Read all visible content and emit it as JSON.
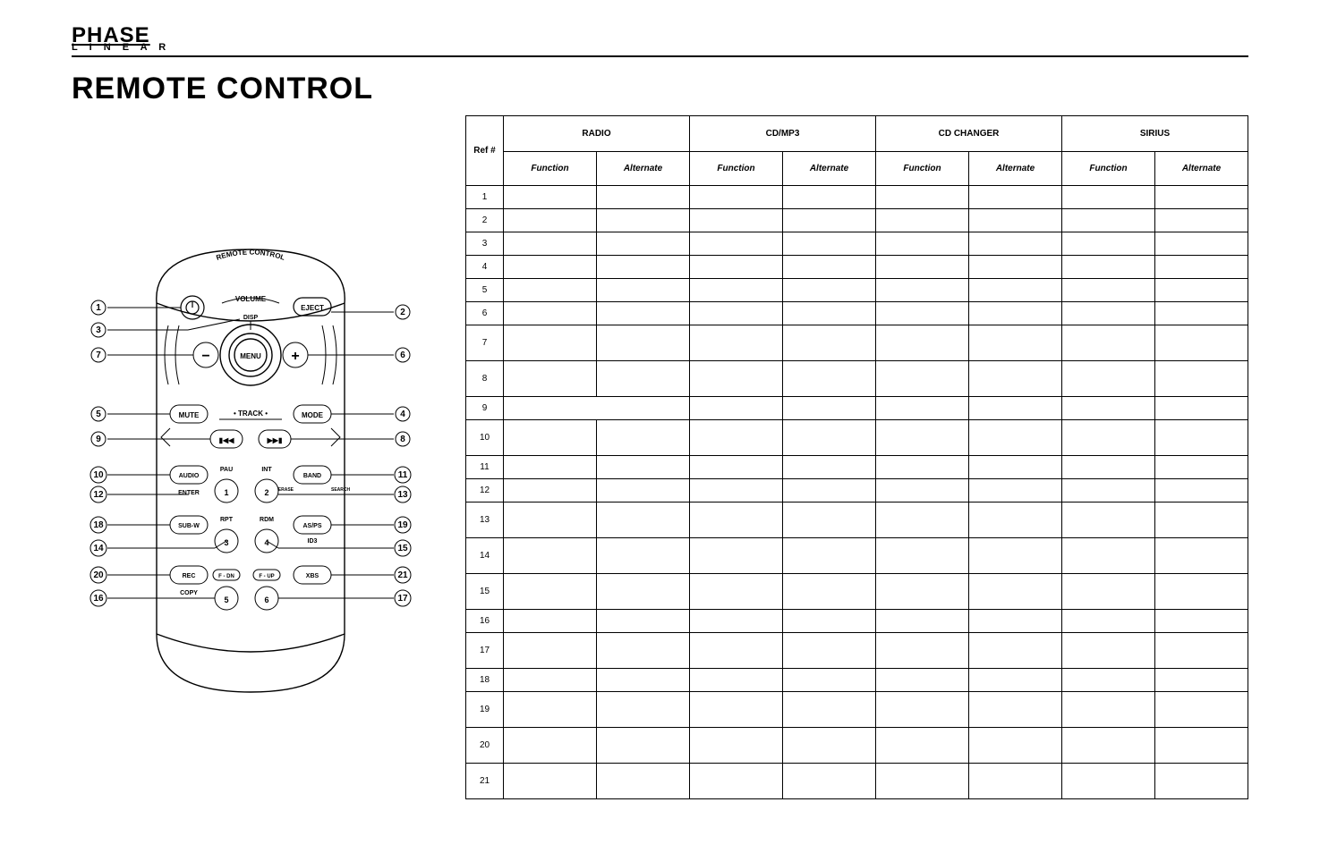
{
  "brand": {
    "top": "PHASE",
    "bottom": "L I N E A R"
  },
  "title": "REMOTE CONTROL",
  "remote": {
    "arc_text": "REMOTE CONTROL",
    "labels": {
      "volume": "VOLUME",
      "disp": "DISP",
      "menu": "MENU",
      "minus": "−",
      "plus": "+",
      "eject": "EJECT",
      "mute": "MUTE",
      "mode": "MODE",
      "track": "•  TRACK  •",
      "prev": "▮◀◀",
      "next": "▶▶▮",
      "audio": "AUDIO",
      "enter": "ENTER",
      "pau": "PAU",
      "int": "INT",
      "band": "BAND",
      "erase": "ERASE",
      "search": "SEARCH",
      "subw": "SUB-W",
      "rpt": "RPT",
      "rdm": "RDM",
      "asps": "AS/PS",
      "id3": "ID3",
      "rec": "REC",
      "copy": "COPY",
      "fdn": "F - DN",
      "fup": "F - UP",
      "xbs": "XBS",
      "n1": "1",
      "n2": "2",
      "n3": "3",
      "n4": "4",
      "n5": "5",
      "n6": "6"
    },
    "callouts": {
      "left": [
        "1",
        "3",
        "7",
        "5",
        "9",
        "10",
        "12",
        "18",
        "14",
        "20",
        "16"
      ],
      "right": [
        "2",
        "6",
        "4",
        "8",
        "11",
        "13",
        "19",
        "15",
        "21",
        "17"
      ]
    }
  },
  "table": {
    "head": {
      "ref": "Ref #",
      "groups": [
        "RADIO",
        "CD/MP3",
        "CD CHANGER",
        "SIRIUS"
      ],
      "sub": [
        "Function",
        "Alternate",
        "Function",
        "Alternate",
        "Function",
        "Alternate",
        "Function",
        "Alternate"
      ]
    },
    "rows": [
      {
        "n": "1",
        "c": [
          "",
          "",
          "",
          "",
          "",
          "",
          "",
          ""
        ]
      },
      {
        "n": "2",
        "c": [
          "",
          "",
          "",
          "",
          "",
          "",
          "",
          ""
        ]
      },
      {
        "n": "3",
        "c": [
          "",
          "",
          "",
          "",
          "",
          "",
          "",
          ""
        ]
      },
      {
        "n": "4",
        "c": [
          "",
          "",
          "",
          "",
          "",
          "",
          "",
          ""
        ]
      },
      {
        "n": "5",
        "c": [
          "",
          "",
          "",
          "",
          "",
          "",
          "",
          ""
        ]
      },
      {
        "n": "6",
        "c": [
          "",
          "",
          "",
          "",
          "",
          "",
          "",
          ""
        ]
      },
      {
        "n": "7",
        "c": [
          "",
          "",
          "",
          "",
          "",
          "",
          "",
          ""
        ],
        "tall": true
      },
      {
        "n": "8",
        "c": [
          "",
          "",
          "",
          "",
          "",
          "",
          "",
          ""
        ],
        "tall": true
      },
      {
        "n": "9",
        "c": [
          "",
          "",
          "",
          "",
          "",
          "",
          "",
          ""
        ],
        "span2": true
      },
      {
        "n": "10",
        "c": [
          "",
          "",
          "",
          "",
          "",
          "",
          "",
          ""
        ],
        "tall": true
      },
      {
        "n": "11",
        "c": [
          "",
          "",
          "",
          "",
          "",
          "",
          "",
          ""
        ]
      },
      {
        "n": "12",
        "c": [
          "",
          "",
          "",
          "",
          "",
          "",
          "",
          ""
        ]
      },
      {
        "n": "13",
        "c": [
          "",
          "",
          "",
          "",
          "",
          "",
          "",
          ""
        ],
        "tall": true
      },
      {
        "n": "14",
        "c": [
          "",
          "",
          "",
          "",
          "",
          "",
          "",
          ""
        ],
        "tall": true
      },
      {
        "n": "15",
        "c": [
          "",
          "",
          "",
          "",
          "",
          "",
          "",
          ""
        ],
        "tall": true
      },
      {
        "n": "16",
        "c": [
          "",
          "",
          "",
          "",
          "",
          "",
          "",
          ""
        ]
      },
      {
        "n": "17",
        "c": [
          "",
          "",
          "",
          "",
          "",
          "",
          "",
          ""
        ],
        "tall": true
      },
      {
        "n": "18",
        "c": [
          "",
          "",
          "",
          "",
          "",
          "",
          "",
          ""
        ]
      },
      {
        "n": "19",
        "c": [
          "",
          "",
          "",
          "",
          "",
          "",
          "",
          ""
        ],
        "tall": true
      },
      {
        "n": "20",
        "c": [
          "",
          "",
          "",
          "",
          "",
          "",
          "",
          ""
        ],
        "tall": true
      },
      {
        "n": "21",
        "c": [
          "",
          "",
          "",
          "",
          "",
          "",
          "",
          ""
        ],
        "tall": true
      }
    ]
  }
}
